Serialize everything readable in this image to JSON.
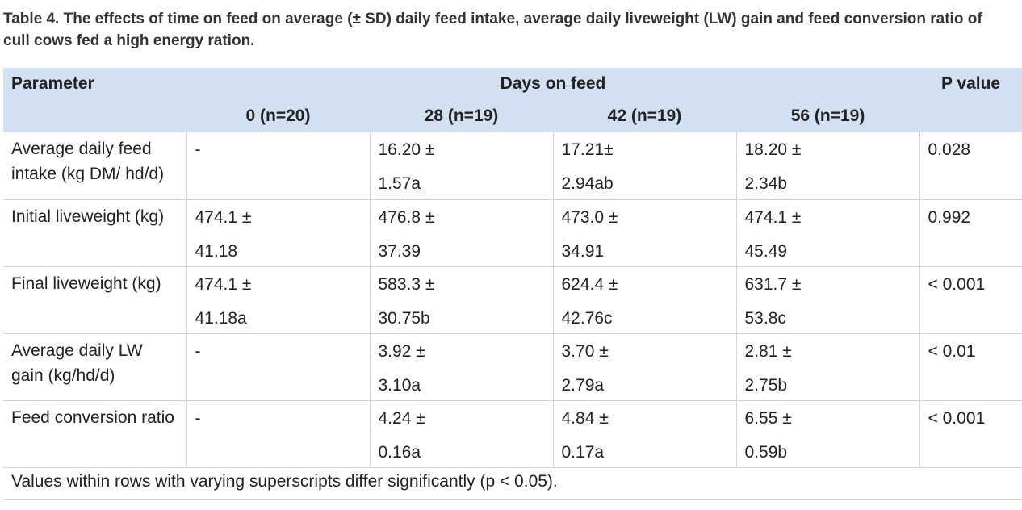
{
  "caption": "Table 4. The effects of time on feed on average (± SD) daily feed intake, average daily liveweight (LW) gain and feed conversion ratio of cull cows fed a high energy ration.",
  "header": {
    "parameter": "Parameter",
    "days_on_feed": "Days on feed",
    "p_value": "P value",
    "columns": [
      "0 (n=20)",
      "28 (n=19)",
      "42 (n=19)",
      "56 (n=19)"
    ]
  },
  "rows": [
    {
      "parameter": "Average daily feed intake (kg DM/ hd/d)",
      "values": [
        {
          "line1": "-",
          "line2": ""
        },
        {
          "line1": "16.20 ±",
          "line2": "1.57a"
        },
        {
          "line1": "17.21±",
          "line2": "2.94ab"
        },
        {
          "line1": "18.20 ±",
          "line2": "2.34b"
        }
      ],
      "p": "0.028"
    },
    {
      "parameter": "Initial liveweight (kg)",
      "values": [
        {
          "line1": "474.1 ±",
          "line2": "41.18"
        },
        {
          "line1": "476.8 ±",
          "line2": "37.39"
        },
        {
          "line1": "473.0 ±",
          "line2": "34.91"
        },
        {
          "line1": "474.1 ±",
          "line2": "45.49"
        }
      ],
      "p": "0.992"
    },
    {
      "parameter": "Final liveweight (kg)",
      "values": [
        {
          "line1": "474.1 ±",
          "line2": "41.18a"
        },
        {
          "line1": "583.3 ±",
          "line2": "30.75b"
        },
        {
          "line1": "624.4 ±",
          "line2": "42.76c"
        },
        {
          "line1": "631.7 ±",
          "line2": "53.8c"
        }
      ],
      "p": "< 0.001"
    },
    {
      "parameter": "Average daily LW gain (kg/hd/d)",
      "values": [
        {
          "line1": "-",
          "line2": ""
        },
        {
          "line1": "3.92 ±",
          "line2": "3.10a"
        },
        {
          "line1": "3.70 ±",
          "line2": "2.79a"
        },
        {
          "line1": "2.81 ±",
          "line2": "2.75b"
        }
      ],
      "p": "< 0.01"
    },
    {
      "parameter": "Feed conversion ratio",
      "values": [
        {
          "line1": "-",
          "line2": ""
        },
        {
          "line1": "4.24 ±",
          "line2": "0.16a"
        },
        {
          "line1": "4.84 ±",
          "line2": "0.17a"
        },
        {
          "line1": "6.55 ±",
          "line2": "0.59b"
        }
      ],
      "p": "< 0.001"
    }
  ],
  "footnote": "Values within rows with varying superscripts differ significantly (p < 0.05)."
}
